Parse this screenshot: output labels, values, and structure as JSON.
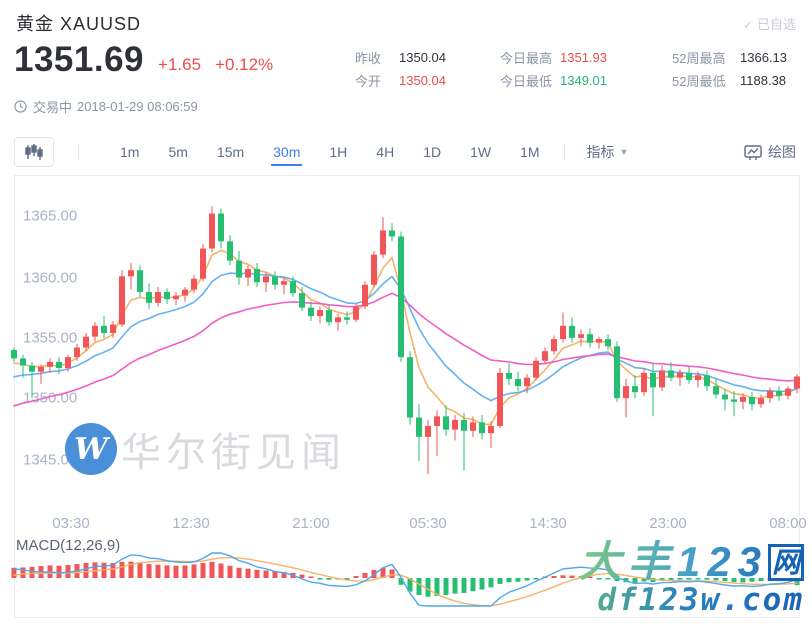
{
  "theme": {
    "red": "#f04b4b",
    "green": "#23b574",
    "accent": "#3c7ef0"
  },
  "header": {
    "title": "黄金 XAUUSD",
    "watchlist_label": "已自选",
    "price": "1351.69",
    "change": "+1.65",
    "change_pct": "+0.12%",
    "status": "交易中",
    "datetime": "2018-01-29 08:06:59",
    "stats": [
      {
        "label": "昨收",
        "value": "1350.04"
      },
      {
        "label": "今开",
        "value": "1350.04"
      },
      {
        "label": "今日最高",
        "value": "1351.93"
      },
      {
        "label": "今日最低",
        "value": "1349.01"
      },
      {
        "label": "52周最高",
        "value": "1366.13"
      },
      {
        "label": "52周最低",
        "value": "1188.38"
      }
    ]
  },
  "toolbar": {
    "timeframes": [
      "1m",
      "5m",
      "15m",
      "30m",
      "1H",
      "4H",
      "1D",
      "1W",
      "1M"
    ],
    "active_timeframe": "30m",
    "indicator_label": "指标",
    "draw_label": "绘图"
  },
  "watermarks": {
    "site_logo_letter": "W",
    "site_name": "华尔街见闻",
    "brand_line1_text": "大丰123",
    "brand_line1_boxed": "网",
    "brand_line2": "df123w.com"
  },
  "chart_data": {
    "type": "candlestick",
    "symbol": "XAUUSD",
    "interval": "30m",
    "y_ticks": [
      "1365.00",
      "1360.00",
      "1355.00",
      "1350.00",
      "1345.00"
    ],
    "x_ticks": [
      "03:30",
      "12:30",
      "21:00",
      "05:30",
      "14:30",
      "23:00",
      "08:00"
    ],
    "ylim": [
      1341.5,
      1367.5
    ],
    "grid": false,
    "up_color": "#f25555",
    "down_color": "#26bf71",
    "candles": [
      [
        1353.9,
        1354.1,
        1352.9,
        1353.2
      ],
      [
        1353.2,
        1353.5,
        1351.6,
        1352.6
      ],
      [
        1352.6,
        1352.9,
        1349.9,
        1352.1
      ],
      [
        1352.1,
        1352.7,
        1351.1,
        1352.5
      ],
      [
        1352.5,
        1353.2,
        1352.0,
        1352.9
      ],
      [
        1352.9,
        1353.3,
        1351.9,
        1352.4
      ],
      [
        1352.4,
        1353.5,
        1352.1,
        1353.3
      ],
      [
        1353.3,
        1354.4,
        1353.0,
        1354.1
      ],
      [
        1354.1,
        1355.3,
        1353.8,
        1355.0
      ],
      [
        1355.0,
        1356.2,
        1354.6,
        1355.9
      ],
      [
        1355.9,
        1356.7,
        1354.9,
        1355.3
      ],
      [
        1355.3,
        1356.3,
        1354.9,
        1356.0
      ],
      [
        1356.0,
        1360.5,
        1355.8,
        1360.0
      ],
      [
        1360.0,
        1361.1,
        1358.9,
        1360.5
      ],
      [
        1360.5,
        1360.9,
        1358.3,
        1358.7
      ],
      [
        1358.7,
        1359.4,
        1357.3,
        1357.8
      ],
      [
        1357.8,
        1359.1,
        1357.5,
        1358.7
      ],
      [
        1358.7,
        1359.0,
        1357.7,
        1358.1
      ],
      [
        1358.1,
        1358.7,
        1357.6,
        1358.4
      ],
      [
        1358.4,
        1359.1,
        1357.9,
        1358.9
      ],
      [
        1358.9,
        1360.1,
        1358.6,
        1359.8
      ],
      [
        1359.8,
        1362.7,
        1359.6,
        1362.3
      ],
      [
        1362.3,
        1365.8,
        1362.0,
        1365.2
      ],
      [
        1365.2,
        1365.6,
        1362.3,
        1362.9
      ],
      [
        1362.9,
        1363.4,
        1360.9,
        1361.3
      ],
      [
        1361.3,
        1362.1,
        1359.3,
        1359.9
      ],
      [
        1359.9,
        1360.9,
        1359.2,
        1360.6
      ],
      [
        1360.6,
        1361.1,
        1359.1,
        1359.5
      ],
      [
        1359.5,
        1360.3,
        1358.7,
        1360.0
      ],
      [
        1360.0,
        1360.4,
        1358.9,
        1359.3
      ],
      [
        1359.3,
        1359.9,
        1358.5,
        1359.6
      ],
      [
        1359.6,
        1360.0,
        1358.3,
        1358.6
      ],
      [
        1358.6,
        1359.1,
        1357.1,
        1357.4
      ],
      [
        1357.4,
        1357.9,
        1356.3,
        1356.7
      ],
      [
        1356.7,
        1357.5,
        1356.1,
        1357.2
      ],
      [
        1357.2,
        1357.6,
        1355.9,
        1356.2
      ],
      [
        1356.2,
        1356.9,
        1355.5,
        1356.6
      ],
      [
        1356.6,
        1357.1,
        1356.0,
        1356.4
      ],
      [
        1356.4,
        1357.7,
        1356.2,
        1357.5
      ],
      [
        1357.5,
        1359.6,
        1357.3,
        1359.3
      ],
      [
        1359.3,
        1362.1,
        1359.1,
        1361.8
      ],
      [
        1361.8,
        1364.9,
        1361.5,
        1363.8
      ],
      [
        1363.8,
        1364.4,
        1362.9,
        1363.3
      ],
      [
        1363.3,
        1363.7,
        1352.9,
        1353.3
      ],
      [
        1353.3,
        1353.8,
        1347.7,
        1348.3
      ],
      [
        1348.3,
        1349.4,
        1344.7,
        1346.7
      ],
      [
        1346.7,
        1348.1,
        1343.6,
        1347.6
      ],
      [
        1347.6,
        1348.9,
        1345.1,
        1348.4
      ],
      [
        1348.4,
        1349.3,
        1346.8,
        1347.3
      ],
      [
        1347.3,
        1348.5,
        1346.4,
        1348.1
      ],
      [
        1348.1,
        1348.7,
        1343.9,
        1347.2
      ],
      [
        1347.2,
        1348.4,
        1346.7,
        1347.9
      ],
      [
        1347.9,
        1348.5,
        1346.5,
        1347.0
      ],
      [
        1347.0,
        1348.0,
        1345.8,
        1347.6
      ],
      [
        1347.6,
        1352.4,
        1347.4,
        1352.0
      ],
      [
        1352.0,
        1352.8,
        1351.0,
        1351.5
      ],
      [
        1351.5,
        1352.1,
        1350.5,
        1350.9
      ],
      [
        1350.9,
        1351.9,
        1350.3,
        1351.6
      ],
      [
        1351.6,
        1353.3,
        1351.4,
        1353.0
      ],
      [
        1353.0,
        1354.1,
        1352.7,
        1353.8
      ],
      [
        1353.8,
        1355.1,
        1353.5,
        1354.8
      ],
      [
        1354.8,
        1357.0,
        1354.5,
        1355.9
      ],
      [
        1355.9,
        1356.6,
        1354.5,
        1354.9
      ],
      [
        1354.9,
        1355.6,
        1354.2,
        1355.2
      ],
      [
        1355.2,
        1355.7,
        1354.1,
        1354.5
      ],
      [
        1354.5,
        1355.0,
        1354.0,
        1354.8
      ],
      [
        1354.8,
        1355.2,
        1353.9,
        1354.2
      ],
      [
        1354.2,
        1354.6,
        1349.6,
        1349.9
      ],
      [
        1349.9,
        1351.5,
        1348.3,
        1350.9
      ],
      [
        1350.9,
        1351.8,
        1349.9,
        1350.4
      ],
      [
        1350.4,
        1352.4,
        1350.1,
        1352.0
      ],
      [
        1352.0,
        1352.8,
        1348.4,
        1350.8
      ],
      [
        1350.8,
        1352.6,
        1350.5,
        1352.2
      ],
      [
        1352.2,
        1352.9,
        1351.3,
        1351.6
      ],
      [
        1351.6,
        1352.3,
        1350.9,
        1352.0
      ],
      [
        1352.0,
        1352.5,
        1351.1,
        1351.4
      ],
      [
        1351.4,
        1352.1,
        1350.8,
        1351.8
      ],
      [
        1351.8,
        1352.2,
        1350.5,
        1350.9
      ],
      [
        1350.9,
        1351.5,
        1349.9,
        1350.2
      ],
      [
        1350.2,
        1350.7,
        1348.9,
        1349.8
      ],
      [
        1349.8,
        1350.5,
        1348.4,
        1349.6
      ],
      [
        1349.6,
        1350.3,
        1349.0,
        1350.0
      ],
      [
        1350.0,
        1350.4,
        1348.9,
        1349.4
      ],
      [
        1349.4,
        1350.2,
        1349.1,
        1349.9
      ],
      [
        1349.9,
        1350.8,
        1349.5,
        1350.5
      ],
      [
        1350.5,
        1350.9,
        1349.7,
        1350.1
      ],
      [
        1350.1,
        1350.9,
        1349.8,
        1350.7
      ],
      [
        1350.7,
        1351.9,
        1350.3,
        1351.7
      ]
    ],
    "ma_lines": [
      {
        "name": "MA-fast",
        "period": 5,
        "seed": 1352.6,
        "color": "#f7b267"
      },
      {
        "name": "MA-mid",
        "period": 12,
        "seed": 1351.4,
        "color": "#64b2f2"
      },
      {
        "name": "MA-slow",
        "period": 30,
        "seed": 1349.0,
        "color": "#f25ec5"
      }
    ],
    "macd": {
      "label": "MACD(12,26,9)",
      "dif_color": "#4fa8f0",
      "dea_color": "#f7b267",
      "hist": [
        0.6,
        0.62,
        0.66,
        0.7,
        0.74,
        0.72,
        0.76,
        0.82,
        0.88,
        0.92,
        0.9,
        0.88,
        0.95,
        0.96,
        0.9,
        0.82,
        0.78,
        0.74,
        0.72,
        0.74,
        0.8,
        0.88,
        0.95,
        0.85,
        0.72,
        0.6,
        0.55,
        0.48,
        0.44,
        0.4,
        0.36,
        0.3,
        0.2,
        0.08,
        -0.05,
        -0.1,
        -0.07,
        -0.04,
        0.12,
        0.3,
        0.48,
        0.6,
        0.5,
        -0.4,
        -0.8,
        -1.0,
        -1.1,
        -1.05,
        -1.0,
        -0.92,
        -0.88,
        -0.78,
        -0.68,
        -0.55,
        -0.35,
        -0.25,
        -0.22,
        -0.15,
        -0.05,
        0.06,
        0.12,
        0.16,
        0.14,
        0.1,
        0.05,
        -0.02,
        -0.06,
        -0.18,
        -0.25,
        -0.28,
        -0.2,
        -0.24,
        -0.16,
        -0.12,
        -0.1,
        -0.1,
        -0.08,
        -0.1,
        -0.14,
        -0.18,
        -0.24,
        -0.26,
        -0.22,
        -0.18,
        -0.14,
        -0.12,
        -0.1,
        -0.42
      ]
    }
  }
}
